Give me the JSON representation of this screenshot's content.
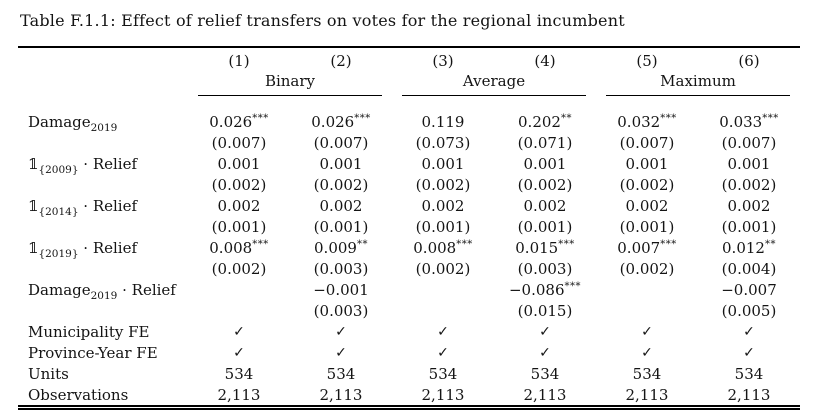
{
  "title": "Table F.1.1: Effect of relief transfers on votes for the regional incumbent",
  "table": {
    "column_numbers": [
      "(1)",
      "(2)",
      "(3)",
      "(4)",
      "(5)",
      "(6)"
    ],
    "groups": [
      {
        "label": "Binary"
      },
      {
        "label": "Average"
      },
      {
        "label": "Maximum"
      }
    ],
    "checkmark_glyph": "✓",
    "rows": [
      {
        "type": "coef",
        "label": [
          {
            "t": "Damage"
          },
          {
            "s": "2019"
          }
        ],
        "est": [
          "0.026",
          "0.026",
          "0.119",
          "0.202",
          "0.032",
          "0.033"
        ],
        "stars": [
          "***",
          "***",
          "",
          "**",
          "***",
          "***"
        ],
        "se": [
          "(0.007)",
          "(0.007)",
          "(0.073)",
          "(0.071)",
          "(0.007)",
          "(0.007)"
        ]
      },
      {
        "type": "coef",
        "label": [
          {
            "t": "𝟙"
          },
          {
            "s": "{2009}"
          },
          {
            "t": " · Relief"
          }
        ],
        "est": [
          "0.001",
          "0.001",
          "0.001",
          "0.001",
          "0.001",
          "0.001"
        ],
        "stars": [
          "",
          "",
          "",
          "",
          "",
          ""
        ],
        "se": [
          "(0.002)",
          "(0.002)",
          "(0.002)",
          "(0.002)",
          "(0.002)",
          "(0.002)"
        ]
      },
      {
        "type": "coef",
        "label": [
          {
            "t": "𝟙"
          },
          {
            "s": "{2014}"
          },
          {
            "t": " · Relief"
          }
        ],
        "est": [
          "0.002",
          "0.002",
          "0.002",
          "0.002",
          "0.002",
          "0.002"
        ],
        "stars": [
          "",
          "",
          "",
          "",
          "",
          ""
        ],
        "se": [
          "(0.001)",
          "(0.001)",
          "(0.001)",
          "(0.001)",
          "(0.001)",
          "(0.001)"
        ]
      },
      {
        "type": "coef",
        "label": [
          {
            "t": "𝟙"
          },
          {
            "s": "{2019}"
          },
          {
            "t": " · Relief"
          }
        ],
        "est": [
          "0.008",
          "0.009",
          "0.008",
          "0.015",
          "0.007",
          "0.012"
        ],
        "stars": [
          "***",
          "**",
          "***",
          "***",
          "***",
          "**"
        ],
        "se": [
          "(0.002)",
          "(0.003)",
          "(0.002)",
          "(0.003)",
          "(0.002)",
          "(0.004)"
        ]
      },
      {
        "type": "coef",
        "label": [
          {
            "t": "Damage"
          },
          {
            "s": "2019"
          },
          {
            "t": " · Relief"
          }
        ],
        "est": [
          "",
          "−0.001",
          "",
          "−0.086",
          "",
          "−0.007"
        ],
        "stars": [
          "",
          "",
          "",
          "***",
          "",
          ""
        ],
        "se": [
          "",
          "(0.003)",
          "",
          "(0.015)",
          "",
          "(0.005)"
        ]
      },
      {
        "type": "check",
        "label": [
          {
            "t": "Municipality FE"
          }
        ],
        "cells": [
          "✓",
          "✓",
          "✓",
          "✓",
          "✓",
          "✓"
        ]
      },
      {
        "type": "check",
        "label": [
          {
            "t": "Province-Year FE"
          }
        ],
        "cells": [
          "✓",
          "✓",
          "✓",
          "✓",
          "✓",
          "✓"
        ]
      },
      {
        "type": "stat",
        "label": [
          {
            "t": "Units"
          }
        ],
        "cells": [
          "534",
          "534",
          "534",
          "534",
          "534",
          "534"
        ]
      },
      {
        "type": "stat",
        "label": [
          {
            "t": "Observations"
          }
        ],
        "cells": [
          "2,113",
          "2,113",
          "2,113",
          "2,113",
          "2,113",
          "2,113"
        ]
      }
    ]
  }
}
